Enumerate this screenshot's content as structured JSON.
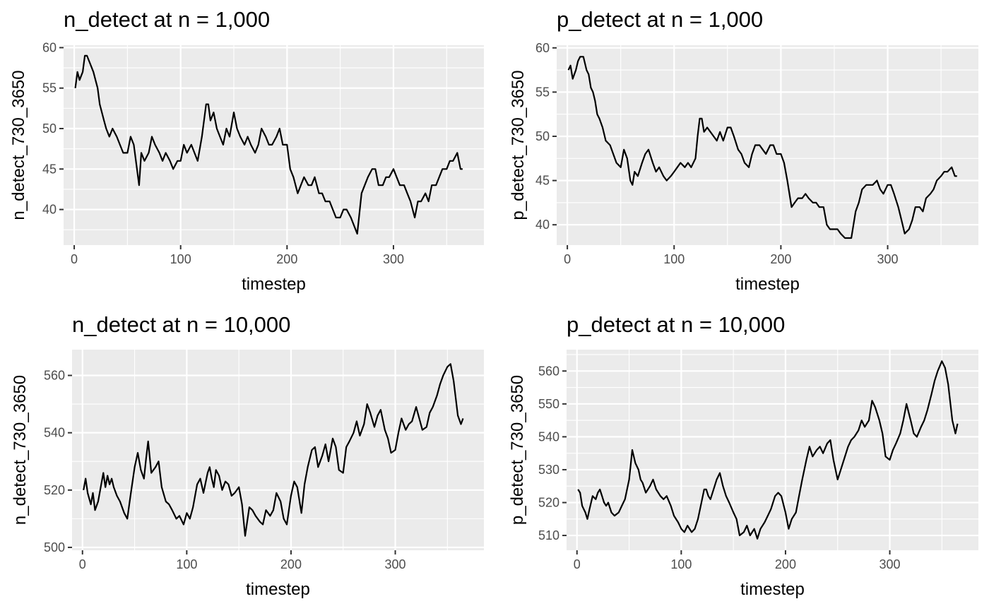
{
  "chart_data": [
    {
      "type": "line",
      "title": "n_detect at n = 1,000",
      "xlabel": "timestep",
      "ylabel": "n_detect_730_3650",
      "xlim": [
        -10,
        385
      ],
      "ylim": [
        35.6,
        60.3
      ],
      "x_ticks": [
        0,
        100,
        200,
        300
      ],
      "y_ticks": [
        40,
        45,
        50,
        55,
        60
      ],
      "grid": true,
      "series": [
        {
          "x": [
            1,
            3,
            5,
            8,
            10,
            12,
            15,
            18,
            20,
            22,
            24,
            26,
            28,
            30,
            33,
            36,
            40,
            43,
            46,
            50,
            53,
            56,
            59,
            61,
            63,
            66,
            70,
            73,
            76,
            80,
            83,
            86,
            90,
            93,
            97,
            100,
            103,
            106,
            110,
            113,
            116,
            120,
            122,
            124,
            126,
            128,
            131,
            134,
            137,
            140,
            143,
            146,
            150,
            153,
            156,
            160,
            163,
            166,
            170,
            173,
            176,
            180,
            183,
            186,
            190,
            193,
            196,
            200,
            203,
            206,
            210,
            213,
            216,
            220,
            223,
            226,
            230,
            233,
            236,
            240,
            243,
            246,
            250,
            253,
            256,
            260,
            263,
            266,
            270,
            273,
            276,
            280,
            283,
            286,
            290,
            293,
            296,
            300,
            303,
            306,
            310,
            313,
            316,
            320,
            323,
            326,
            330,
            333,
            336,
            340,
            343,
            346,
            350,
            353,
            356,
            360,
            363,
            365
          ],
          "y": [
            55,
            57,
            56,
            57,
            59,
            59,
            58,
            57,
            56,
            55,
            53,
            52,
            51,
            50,
            49,
            50,
            49,
            48,
            47,
            47,
            49,
            48,
            45,
            43,
            47,
            46,
            47,
            49,
            48,
            47,
            46,
            47,
            46,
            45,
            46,
            46,
            48,
            47,
            48,
            47,
            46,
            49,
            51,
            53,
            53,
            51,
            52,
            50,
            49,
            48,
            50,
            49,
            52,
            50,
            49,
            48,
            49,
            48,
            47,
            48,
            50,
            49,
            48,
            48,
            49,
            50,
            48,
            48,
            45,
            44,
            42,
            43,
            44,
            43,
            43,
            44,
            42,
            42,
            41,
            41,
            40,
            39,
            39,
            40,
            40,
            39,
            38,
            37,
            42,
            43,
            44,
            45,
            45,
            43,
            43,
            44,
            44,
            45,
            44,
            43,
            43,
            42,
            41,
            39,
            41,
            41,
            42,
            41,
            43,
            43,
            44,
            45,
            45,
            46,
            46,
            47,
            45,
            45
          ]
        }
      ]
    },
    {
      "type": "line",
      "title": "p_detect at n = 1,000",
      "xlabel": "timestep",
      "ylabel": "p_detect_730_3650",
      "xlim": [
        -10,
        385
      ],
      "ylim": [
        37.7,
        60.3
      ],
      "x_ticks": [
        0,
        100,
        200,
        300
      ],
      "y_ticks": [
        40,
        45,
        50,
        55,
        60
      ],
      "grid": true,
      "series": [
        {
          "x": [
            1,
            3,
            5,
            8,
            10,
            12,
            15,
            18,
            20,
            22,
            24,
            26,
            28,
            30,
            33,
            36,
            40,
            43,
            46,
            50,
            53,
            56,
            59,
            61,
            63,
            66,
            70,
            73,
            76,
            80,
            83,
            86,
            90,
            93,
            97,
            100,
            103,
            106,
            110,
            113,
            116,
            120,
            122,
            124,
            126,
            128,
            131,
            134,
            137,
            140,
            143,
            146,
            150,
            153,
            156,
            160,
            163,
            166,
            170,
            173,
            176,
            180,
            183,
            186,
            190,
            193,
            196,
            200,
            203,
            206,
            210,
            213,
            216,
            220,
            223,
            226,
            230,
            233,
            236,
            240,
            243,
            246,
            250,
            253,
            256,
            260,
            263,
            266,
            270,
            273,
            276,
            280,
            283,
            286,
            290,
            293,
            296,
            300,
            303,
            306,
            310,
            313,
            316,
            320,
            323,
            326,
            330,
            333,
            336,
            340,
            343,
            346,
            350,
            353,
            356,
            360,
            363,
            365
          ],
          "y": [
            57.5,
            58,
            56.5,
            57.5,
            58.5,
            59,
            59,
            57.5,
            57,
            55.5,
            55,
            54,
            52.5,
            52,
            51,
            49.5,
            49,
            48,
            47,
            46.5,
            48.5,
            47.5,
            45,
            44.5,
            46,
            45.5,
            47,
            48,
            48.5,
            47,
            46,
            46.5,
            45.5,
            45,
            45.5,
            46,
            46.5,
            47,
            46.5,
            47,
            46.5,
            47.5,
            50,
            52,
            52,
            50.5,
            51,
            50.5,
            50,
            49.5,
            50.5,
            49.5,
            51,
            51,
            50,
            48.5,
            48,
            47,
            46.5,
            48,
            49,
            49,
            48.5,
            48,
            49,
            49,
            48,
            48,
            47,
            45,
            42,
            42.5,
            43,
            43,
            43.5,
            43,
            42.5,
            42.5,
            42,
            42,
            40,
            39.5,
            39.5,
            39.5,
            39,
            38.5,
            38.5,
            38.5,
            41.5,
            42.5,
            44,
            44.5,
            44.5,
            44.5,
            45,
            44,
            43.5,
            44.5,
            44.5,
            43.5,
            42,
            40.5,
            39,
            39.5,
            40.5,
            42,
            42,
            41.5,
            43,
            43.5,
            44,
            45,
            45.5,
            46,
            46,
            46.5,
            45.5,
            45.5
          ]
        }
      ]
    },
    {
      "type": "line",
      "title": "n_detect at n = 10,000",
      "xlabel": "timestep",
      "ylabel": "n_detect_730_3650",
      "xlim": [
        -10,
        385
      ],
      "ylim": [
        499,
        569
      ],
      "x_ticks": [
        0,
        100,
        200,
        300
      ],
      "y_ticks": [
        500,
        520,
        540,
        560
      ],
      "grid": true,
      "series": [
        {
          "x": [
            1,
            3,
            5,
            8,
            10,
            12,
            15,
            18,
            20,
            22,
            24,
            26,
            28,
            30,
            33,
            36,
            40,
            43,
            46,
            50,
            53,
            56,
            59,
            61,
            63,
            66,
            70,
            73,
            76,
            80,
            83,
            86,
            90,
            93,
            97,
            100,
            103,
            106,
            110,
            113,
            116,
            120,
            122,
            124,
            126,
            128,
            131,
            134,
            137,
            140,
            143,
            146,
            150,
            153,
            156,
            160,
            163,
            166,
            170,
            173,
            176,
            180,
            183,
            186,
            190,
            193,
            196,
            200,
            203,
            206,
            210,
            213,
            216,
            220,
            223,
            226,
            230,
            233,
            236,
            240,
            243,
            246,
            250,
            253,
            256,
            260,
            263,
            266,
            270,
            273,
            276,
            280,
            283,
            286,
            290,
            293,
            296,
            300,
            303,
            306,
            310,
            313,
            316,
            320,
            323,
            326,
            330,
            333,
            336,
            340,
            343,
            346,
            350,
            353,
            356,
            360,
            363,
            365
          ],
          "y": [
            520,
            524,
            519,
            515,
            519,
            513,
            516,
            522,
            526,
            521,
            525,
            522,
            524,
            521,
            518,
            516,
            512,
            510,
            518,
            528,
            533,
            527,
            524,
            531,
            537,
            526,
            528,
            530,
            521,
            516,
            515,
            513,
            510,
            511,
            508,
            512,
            510,
            514,
            522,
            524,
            519,
            526,
            528,
            524,
            521,
            527,
            525,
            520,
            523,
            522,
            518,
            519,
            521,
            515,
            504,
            514,
            513,
            511,
            509,
            508,
            513,
            511,
            513,
            519,
            516,
            510,
            508,
            518,
            523,
            521,
            512,
            522,
            528,
            534,
            535,
            528,
            532,
            536,
            530,
            538,
            535,
            527,
            526,
            535,
            537,
            540,
            544,
            539,
            543,
            550,
            547,
            542,
            546,
            548,
            541,
            538,
            533,
            534,
            540,
            545,
            541,
            543,
            544,
            549,
            545,
            541,
            542,
            547,
            549,
            553,
            557,
            560,
            563,
            564,
            558,
            546,
            543,
            545
          ]
        }
      ]
    },
    {
      "type": "line",
      "title": "p_detect at n = 10,000",
      "xlabel": "timestep",
      "ylabel": "p_detect_730_3650",
      "xlim": [
        -10,
        385
      ],
      "ylim": [
        505.5,
        566.5
      ],
      "x_ticks": [
        0,
        100,
        200,
        300
      ],
      "y_ticks": [
        510,
        520,
        530,
        540,
        550,
        560
      ],
      "grid": true,
      "series": [
        {
          "x": [
            1,
            3,
            5,
            8,
            10,
            12,
            15,
            18,
            20,
            22,
            24,
            26,
            28,
            30,
            33,
            36,
            40,
            43,
            46,
            50,
            53,
            56,
            59,
            61,
            63,
            66,
            70,
            73,
            76,
            80,
            83,
            86,
            90,
            93,
            97,
            100,
            103,
            106,
            110,
            113,
            116,
            120,
            122,
            124,
            126,
            128,
            131,
            134,
            137,
            140,
            143,
            146,
            150,
            153,
            156,
            160,
            163,
            166,
            170,
            173,
            176,
            180,
            183,
            186,
            190,
            193,
            196,
            200,
            203,
            206,
            210,
            213,
            216,
            220,
            223,
            226,
            230,
            233,
            236,
            240,
            243,
            246,
            250,
            253,
            256,
            260,
            263,
            266,
            270,
            273,
            276,
            280,
            283,
            286,
            290,
            293,
            296,
            300,
            303,
            306,
            310,
            313,
            316,
            320,
            323,
            326,
            330,
            333,
            336,
            340,
            343,
            346,
            350,
            353,
            356,
            360,
            363,
            365
          ],
          "y": [
            524,
            523,
            519,
            517,
            515,
            518,
            522,
            521,
            523,
            524,
            522,
            520,
            519,
            520,
            517,
            516,
            517,
            519,
            521,
            527,
            536,
            532,
            530,
            527,
            526,
            523,
            525,
            527,
            524,
            522,
            521,
            522,
            519,
            516,
            514,
            512,
            511,
            513,
            511,
            512,
            515,
            521,
            524,
            524,
            522,
            521,
            524,
            527,
            529,
            525,
            522,
            520,
            517,
            515,
            510,
            511,
            513,
            510,
            512,
            509,
            512,
            514,
            516,
            518,
            522,
            523,
            522,
            517,
            512,
            515,
            517,
            522,
            527,
            533,
            537,
            534,
            536,
            537,
            535,
            538,
            539,
            533,
            527,
            530,
            533,
            537,
            539,
            540,
            542,
            545,
            543,
            545,
            551,
            549,
            545,
            541,
            534,
            533,
            536,
            538,
            541,
            545,
            550,
            545,
            541,
            540,
            543,
            545,
            548,
            553,
            557,
            560,
            563,
            561,
            556,
            545,
            541,
            544
          ]
        }
      ]
    }
  ]
}
